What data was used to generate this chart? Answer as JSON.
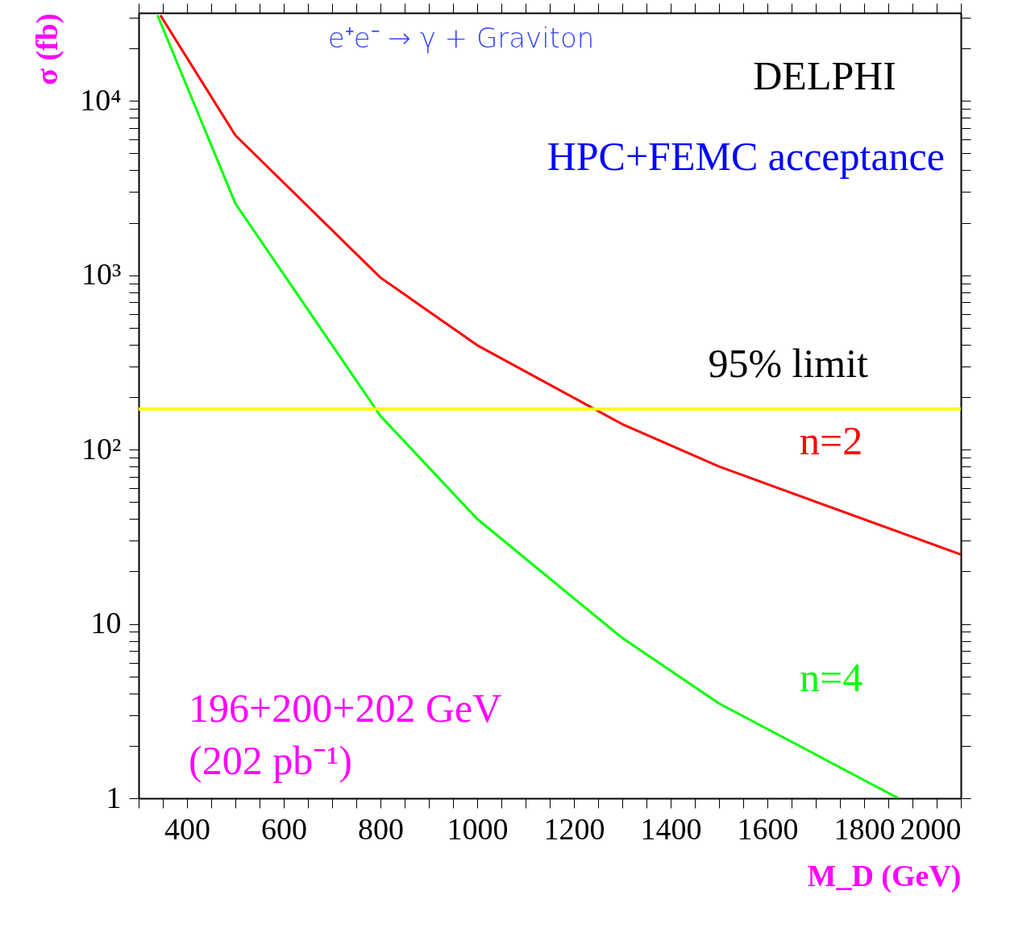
{
  "chart_data": {
    "type": "line",
    "title": "e⁺e⁻ → γ + Graviton",
    "xlabel": "M_D (GeV)",
    "ylabel": "σ (fb)",
    "log": "y",
    "grid": false,
    "legend": false,
    "xlim": [
      300,
      2000
    ],
    "ylim": [
      1,
      32000
    ],
    "xticks": [
      {
        "value": 300,
        "label": null
      },
      {
        "value": 350,
        "label": null
      },
      400,
      {
        "value": 450,
        "label": null
      },
      {
        "value": 500,
        "label": null
      },
      {
        "value": 550,
        "label": null
      },
      600,
      {
        "value": 650,
        "label": null
      },
      {
        "value": 700,
        "label": null
      },
      {
        "value": 750,
        "label": null
      },
      800,
      {
        "value": 850,
        "label": null
      },
      {
        "value": 900,
        "label": null
      },
      {
        "value": 950,
        "label": null
      },
      1000,
      {
        "value": 1050,
        "label": null
      },
      {
        "value": 1100,
        "label": null
      },
      {
        "value": 1150,
        "label": null
      },
      1200,
      {
        "value": 1250,
        "label": null
      },
      {
        "value": 1300,
        "label": null
      },
      {
        "value": 1350,
        "label": null
      },
      1400,
      {
        "value": 1450,
        "label": null
      },
      {
        "value": 1500,
        "label": null
      },
      {
        "value": 1550,
        "label": null
      },
      1600,
      {
        "value": 1650,
        "label": null
      },
      {
        "value": 1700,
        "label": null
      },
      {
        "value": 1750,
        "label": null
      },
      1800,
      {
        "value": 1850,
        "label": null
      },
      {
        "value": 1900,
        "label": null
      },
      {
        "value": 1950,
        "label": null
      },
      2000
    ],
    "yticks": [
      1,
      {
        "value": 2,
        "label": null
      },
      {
        "value": 3,
        "label": null
      },
      {
        "value": 4,
        "label": null
      },
      {
        "value": 5,
        "label": null
      },
      {
        "value": 6,
        "label": null
      },
      {
        "value": 7,
        "label": null
      },
      {
        "value": 8,
        "label": null
      },
      {
        "value": 9,
        "label": null
      },
      10,
      {
        "value": 20,
        "label": null
      },
      {
        "value": 30,
        "label": null
      },
      {
        "value": 40,
        "label": null
      },
      {
        "value": 50,
        "label": null
      },
      {
        "value": 60,
        "label": null
      },
      {
        "value": 70,
        "label": null
      },
      {
        "value": 80,
        "label": null
      },
      {
        "value": 90,
        "label": null
      },
      {
        "value": 100,
        "label": "10²"
      },
      {
        "value": 200,
        "label": null
      },
      {
        "value": 300,
        "label": null
      },
      {
        "value": 400,
        "label": null
      },
      {
        "value": 500,
        "label": null
      },
      {
        "value": 600,
        "label": null
      },
      {
        "value": 700,
        "label": null
      },
      {
        "value": 800,
        "label": null
      },
      {
        "value": 900,
        "label": null
      },
      {
        "value": 1000,
        "label": "10³"
      },
      {
        "value": 2000,
        "label": null
      },
      {
        "value": 3000,
        "label": null
      },
      {
        "value": 4000,
        "label": null
      },
      {
        "value": 5000,
        "label": null
      },
      {
        "value": 6000,
        "label": null
      },
      {
        "value": 7000,
        "label": null
      },
      {
        "value": 8000,
        "label": null
      },
      {
        "value": 9000,
        "label": null
      },
      {
        "value": 10000,
        "label": "10⁴"
      },
      {
        "value": 20000,
        "label": null
      },
      {
        "value": 30000,
        "label": null
      }
    ],
    "series": [
      {
        "name": "n=2",
        "color": "#ff0000",
        "x": [
          345,
          500,
          800,
          1000,
          1300,
          1500,
          2000
        ],
        "values": [
          31000,
          6350,
          970,
          397,
          140,
          80,
          25
        ]
      },
      {
        "name": "n=4",
        "color": "#00ff00",
        "x": [
          339,
          500,
          800,
          1000,
          1300,
          1500,
          1871
        ],
        "values": [
          31000,
          2580,
          156,
          40,
          8.3,
          3.5,
          1
        ]
      }
    ],
    "ref_lines": [
      {
        "axis": "y",
        "value": 171,
        "label": "95% limit",
        "color": "#ffff00"
      }
    ],
    "annotations": [
      "DELPHI",
      "HPC+FEMC acceptance",
      "196+200+202 GeV",
      "(202 pb⁻¹)"
    ]
  }
}
